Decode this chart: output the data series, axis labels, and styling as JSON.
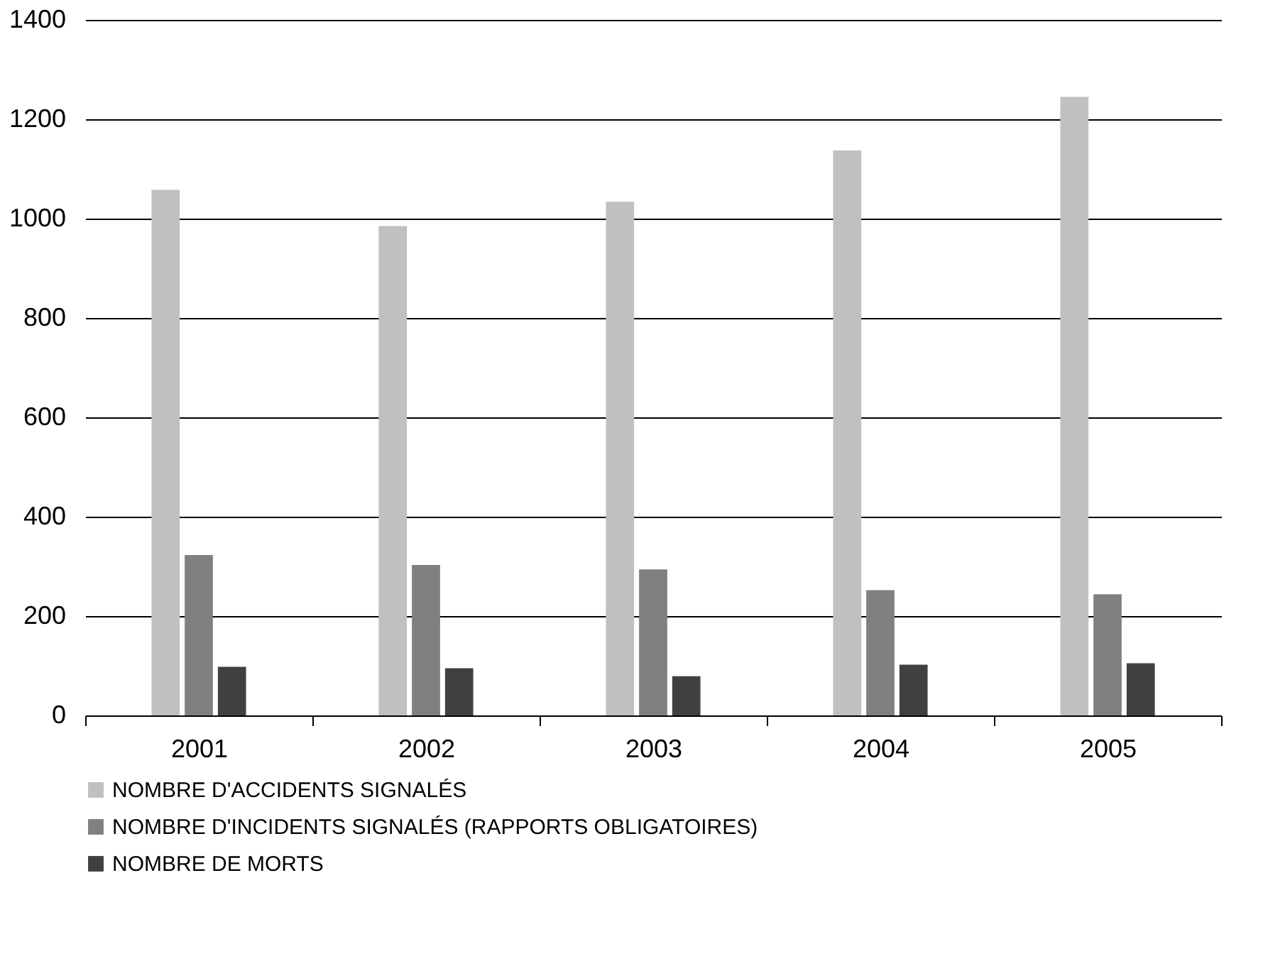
{
  "chart_data": {
    "type": "bar",
    "categories": [
      "2001",
      "2002",
      "2003",
      "2004",
      "2005"
    ],
    "series": [
      {
        "name": "NOMBRE D'ACCIDENTS SIGNALÉS",
        "color": "#c0c0c0",
        "values": [
          1058,
          985,
          1034,
          1137,
          1245
        ]
      },
      {
        "name": "NOMBRE D'INCIDENTS SIGNALÉS (RAPPORTS OBLIGATOIRES)",
        "color": "#808080",
        "values": [
          323,
          303,
          294,
          252,
          244
        ]
      },
      {
        "name": "NOMBRE DE MORTS",
        "color": "#404040",
        "values": [
          98,
          95,
          79,
          102,
          105
        ]
      }
    ],
    "ylim": [
      0,
      1400
    ],
    "yticks": [
      0,
      200,
      400,
      600,
      800,
      1000,
      1200,
      1400
    ],
    "grid": "y",
    "legend": "bottom"
  }
}
